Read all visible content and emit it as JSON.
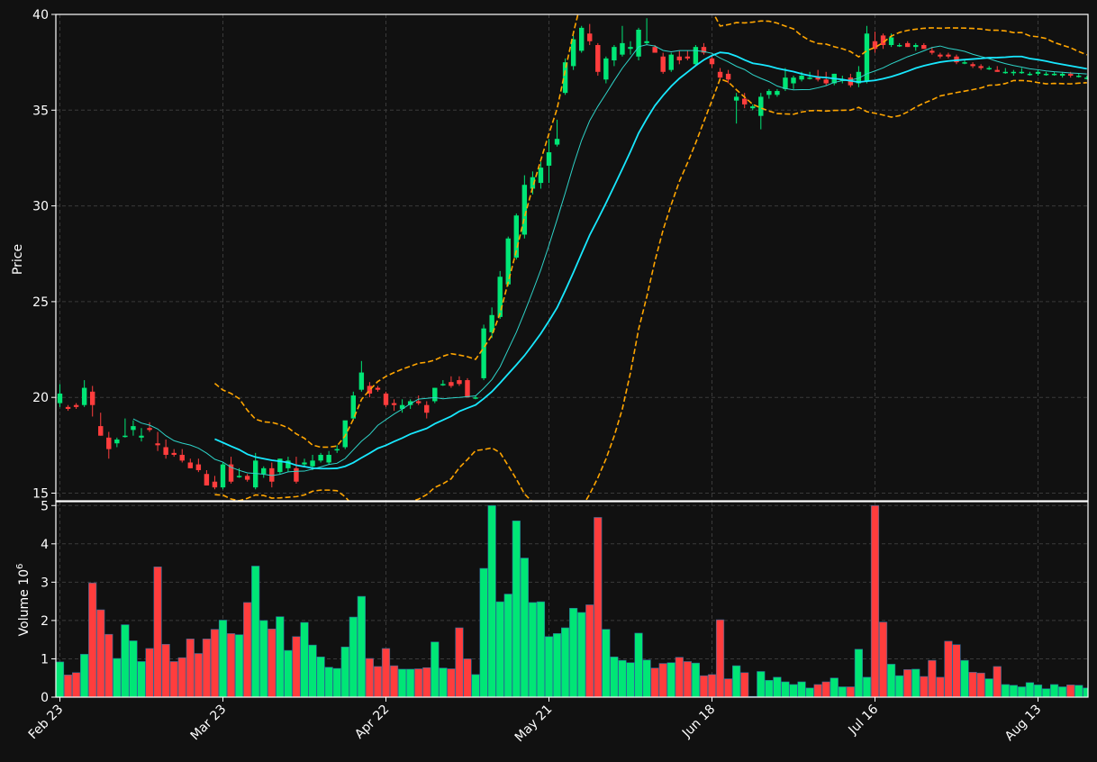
{
  "chart_data": {
    "type": "candlestick",
    "colors": {
      "background": "#111111",
      "grid": "#3a3a3a",
      "up": "#00e676",
      "down": "#ff3d3d",
      "ma_fast": "#2ed3c8",
      "ma_slow": "#18e8ff",
      "bollinger": "#ffa500",
      "axis": "#ffffff"
    },
    "price_panel": {
      "ylabel": "Price",
      "ylim": [
        14.6,
        40.0
      ],
      "yticks": [
        "15",
        "20",
        "25",
        "30",
        "35",
        "40"
      ],
      "grid": true
    },
    "volume_panel": {
      "ylabel": "Volume",
      "ylabel_exponent": "10",
      "ylabel_power": "6",
      "ylim": [
        0,
        5.1
      ],
      "yticks": [
        "0",
        "1",
        "2",
        "3",
        "4",
        "5"
      ],
      "grid": true
    },
    "xticks": [
      {
        "index": 0,
        "label": "Feb 23"
      },
      {
        "index": 20,
        "label": "Mar 23"
      },
      {
        "index": 40,
        "label": "Apr 22"
      },
      {
        "index": 60,
        "label": "May 21"
      },
      {
        "index": 80,
        "label": "Jun 18"
      },
      {
        "index": 100,
        "label": "Jul 16"
      },
      {
        "index": 120,
        "label": "Aug 13"
      }
    ],
    "ohlc": [
      [
        19.7,
        20.7,
        19.5,
        20.2
      ],
      [
        19.5,
        19.6,
        19.3,
        19.4
      ],
      [
        19.6,
        19.7,
        19.4,
        19.5
      ],
      [
        19.6,
        20.9,
        19.5,
        20.5
      ],
      [
        20.3,
        20.6,
        19.0,
        19.6
      ],
      [
        18.5,
        19.2,
        18.0,
        18.0
      ],
      [
        17.9,
        18.2,
        16.8,
        17.3
      ],
      [
        17.6,
        17.9,
        17.4,
        17.8
      ],
      [
        18.0,
        18.9,
        17.9,
        18.0
      ],
      [
        18.3,
        18.8,
        18.0,
        18.5
      ],
      [
        17.9,
        18.4,
        17.7,
        18.0
      ],
      [
        18.4,
        18.7,
        18.2,
        18.3
      ],
      [
        17.6,
        18.2,
        17.2,
        17.5
      ],
      [
        17.4,
        17.8,
        16.8,
        17.0
      ],
      [
        17.1,
        17.3,
        16.9,
        17.0
      ],
      [
        17.0,
        17.3,
        16.6,
        16.7
      ],
      [
        16.6,
        16.8,
        16.3,
        16.3
      ],
      [
        16.5,
        16.8,
        16.1,
        16.2
      ],
      [
        16.0,
        16.2,
        15.4,
        15.4
      ],
      [
        15.6,
        15.9,
        15.2,
        15.3
      ],
      [
        15.3,
        16.6,
        15.2,
        16.5
      ],
      [
        16.5,
        16.9,
        15.5,
        15.6
      ],
      [
        15.9,
        16.3,
        15.8,
        15.9
      ],
      [
        15.9,
        16.0,
        15.6,
        15.7
      ],
      [
        15.3,
        17.1,
        15.2,
        16.7
      ],
      [
        16.0,
        16.4,
        15.8,
        16.3
      ],
      [
        16.3,
        16.6,
        15.3,
        15.6
      ],
      [
        16.1,
        16.8,
        16.0,
        16.8
      ],
      [
        16.3,
        16.9,
        16.1,
        16.7
      ],
      [
        16.3,
        16.9,
        15.5,
        15.6
      ],
      [
        16.5,
        16.8,
        16.4,
        16.6
      ],
      [
        16.4,
        17.0,
        16.2,
        16.7
      ],
      [
        16.7,
        17.1,
        16.6,
        17.0
      ],
      [
        16.6,
        17.2,
        16.5,
        17.0
      ],
      [
        17.3,
        17.5,
        17.1,
        17.3
      ],
      [
        17.4,
        18.7,
        17.3,
        18.8
      ],
      [
        18.9,
        20.3,
        18.8,
        20.1
      ],
      [
        20.4,
        21.9,
        20.3,
        21.3
      ],
      [
        20.6,
        20.8,
        20.0,
        20.2
      ],
      [
        20.5,
        20.6,
        20.3,
        20.4
      ],
      [
        20.2,
        20.3,
        19.5,
        19.6
      ],
      [
        19.7,
        19.9,
        19.3,
        19.6
      ],
      [
        19.4,
        19.9,
        19.2,
        19.6
      ],
      [
        19.6,
        19.9,
        19.4,
        19.8
      ],
      [
        19.8,
        20.1,
        19.6,
        19.7
      ],
      [
        19.6,
        19.8,
        18.9,
        19.2
      ],
      [
        19.8,
        20.5,
        19.7,
        20.5
      ],
      [
        20.7,
        20.9,
        20.6,
        20.7
      ],
      [
        20.8,
        21.1,
        20.5,
        20.6
      ],
      [
        20.9,
        21.1,
        20.6,
        20.7
      ],
      [
        20.9,
        21.0,
        20.0,
        20.0
      ],
      [
        20.0,
        20.1,
        19.9,
        20.0
      ],
      [
        21.0,
        23.8,
        20.9,
        23.6
      ],
      [
        23.4,
        24.7,
        23.1,
        24.3
      ],
      [
        24.2,
        26.6,
        24.1,
        26.3
      ],
      [
        25.9,
        28.4,
        25.8,
        28.3
      ],
      [
        27.3,
        29.6,
        27.2,
        29.5
      ],
      [
        28.5,
        31.6,
        28.3,
        31.1
      ],
      [
        30.9,
        31.8,
        30.6,
        31.5
      ],
      [
        31.2,
        32.3,
        30.9,
        32.0
      ],
      [
        32.1,
        33.5,
        31.2,
        32.8
      ],
      [
        33.2,
        34.5,
        33.1,
        33.5
      ],
      [
        35.9,
        37.7,
        35.8,
        37.5
      ],
      [
        37.3,
        38.9,
        37.1,
        38.7
      ],
      [
        38.1,
        39.4,
        38.0,
        39.3
      ],
      [
        39.0,
        39.5,
        38.4,
        38.6
      ],
      [
        38.4,
        38.5,
        36.8,
        37.0
      ],
      [
        36.6,
        37.8,
        36.4,
        37.7
      ],
      [
        37.6,
        38.4,
        37.3,
        38.3
      ],
      [
        37.9,
        39.4,
        37.8,
        38.5
      ],
      [
        38.2,
        38.6,
        37.9,
        38.3
      ],
      [
        37.8,
        39.3,
        37.6,
        39.2
      ],
      [
        38.5,
        39.8,
        38.4,
        38.6
      ],
      [
        38.3,
        38.4,
        38.0,
        38.0
      ],
      [
        37.8,
        38.0,
        36.9,
        37.0
      ],
      [
        37.1,
        38.0,
        37.0,
        37.9
      ],
      [
        37.8,
        38.1,
        37.4,
        37.6
      ],
      [
        37.8,
        38.1,
        37.6,
        37.7
      ],
      [
        37.4,
        38.4,
        37.3,
        38.3
      ],
      [
        38.3,
        38.5,
        37.9,
        38.0
      ],
      [
        37.7,
        37.9,
        37.2,
        37.4
      ],
      [
        37.0,
        37.2,
        36.6,
        36.7
      ],
      [
        36.9,
        37.1,
        36.4,
        36.6
      ],
      [
        35.5,
        35.9,
        34.3,
        35.7
      ],
      [
        35.6,
        35.9,
        35.1,
        35.3
      ],
      [
        35.1,
        35.3,
        35.0,
        35.2
      ],
      [
        34.7,
        35.9,
        34.0,
        35.7
      ],
      [
        35.8,
        36.1,
        35.6,
        36.0
      ],
      [
        35.8,
        36.1,
        35.7,
        36.0
      ],
      [
        36.1,
        37.2,
        36.0,
        36.7
      ],
      [
        36.4,
        36.8,
        36.1,
        36.7
      ],
      [
        36.6,
        37.0,
        36.5,
        36.8
      ],
      [
        36.7,
        37.0,
        36.6,
        36.7
      ],
      [
        36.7,
        37.1,
        36.5,
        36.6
      ],
      [
        36.6,
        37.0,
        36.3,
        36.4
      ],
      [
        36.4,
        36.9,
        36.3,
        36.9
      ],
      [
        36.6,
        36.8,
        36.4,
        36.6
      ],
      [
        36.7,
        36.9,
        36.2,
        36.3
      ],
      [
        36.4,
        37.3,
        36.2,
        37.0
      ],
      [
        36.5,
        39.4,
        36.4,
        39.0
      ],
      [
        38.6,
        39.1,
        38.0,
        38.2
      ],
      [
        38.9,
        39.0,
        38.2,
        38.4
      ],
      [
        38.4,
        39.0,
        38.3,
        38.8
      ],
      [
        38.4,
        38.5,
        38.3,
        38.4
      ],
      [
        38.5,
        38.6,
        38.3,
        38.3
      ],
      [
        38.3,
        38.5,
        38.1,
        38.4
      ],
      [
        38.4,
        38.5,
        38.2,
        38.2
      ],
      [
        38.1,
        38.3,
        37.9,
        38.0
      ],
      [
        37.9,
        38.0,
        37.7,
        37.8
      ],
      [
        37.9,
        38.0,
        37.7,
        37.8
      ],
      [
        37.8,
        37.9,
        37.4,
        37.5
      ],
      [
        37.5,
        37.6,
        37.4,
        37.5
      ],
      [
        37.4,
        37.5,
        37.2,
        37.3
      ],
      [
        37.3,
        37.4,
        37.1,
        37.2
      ],
      [
        37.2,
        37.3,
        37.1,
        37.2
      ],
      [
        37.1,
        37.3,
        37.0,
        37.0
      ],
      [
        37.0,
        37.2,
        36.9,
        37.0
      ],
      [
        37.0,
        37.1,
        36.8,
        37.0
      ],
      [
        37.0,
        37.2,
        36.9,
        37.0
      ],
      [
        36.9,
        37.0,
        36.8,
        36.9
      ],
      [
        36.9,
        37.1,
        36.8,
        37.0
      ],
      [
        36.9,
        37.0,
        36.8,
        36.9
      ],
      [
        36.9,
        37.0,
        36.8,
        36.9
      ],
      [
        36.8,
        37.0,
        36.7,
        36.9
      ],
      [
        36.9,
        37.0,
        36.7,
        36.8
      ],
      [
        36.8,
        36.9,
        36.7,
        36.8
      ],
      [
        36.7,
        36.8,
        36.6,
        36.7
      ]
    ],
    "volume": [
      0.92,
      0.58,
      0.64,
      1.12,
      2.98,
      2.28,
      1.64,
      1.01,
      1.89,
      1.47,
      0.93,
      1.27,
      3.4,
      1.38,
      0.93,
      1.03,
      1.52,
      1.14,
      1.52,
      1.77,
      2.01,
      1.66,
      1.63,
      2.47,
      3.42,
      2.0,
      1.78,
      2.1,
      1.22,
      1.58,
      1.95,
      1.36,
      1.05,
      0.78,
      0.75,
      1.31,
      2.09,
      2.63,
      1.01,
      0.8,
      1.27,
      0.82,
      0.73,
      0.73,
      0.74,
      0.77,
      1.44,
      0.76,
      0.74,
      1.81,
      1.0,
      0.59,
      3.36,
      5.0,
      2.49,
      2.69,
      4.6,
      3.63,
      2.47,
      2.49,
      1.58,
      1.66,
      1.81,
      2.32,
      2.21,
      2.41,
      4.69,
      1.77,
      1.05,
      0.96,
      0.9,
      1.67,
      0.97,
      0.76,
      0.88,
      0.9,
      1.04,
      0.93,
      0.89,
      0.56,
      0.59,
      2.02,
      0.48,
      0.82,
      0.64,
      0.02,
      0.67,
      0.44,
      0.52,
      0.4,
      0.33,
      0.4,
      0.24,
      0.33,
      0.4,
      0.5,
      0.27,
      0.27,
      1.25,
      0.52,
      5.0,
      1.96,
      0.86,
      0.56,
      0.72,
      0.73,
      0.54,
      0.96,
      0.52,
      1.46,
      1.37,
      0.96,
      0.65,
      0.63,
      0.48,
      0.8,
      0.33,
      0.31,
      0.27,
      0.38,
      0.32,
      0.22,
      0.33,
      0.27,
      0.32,
      0.31,
      0.24
    ]
  }
}
